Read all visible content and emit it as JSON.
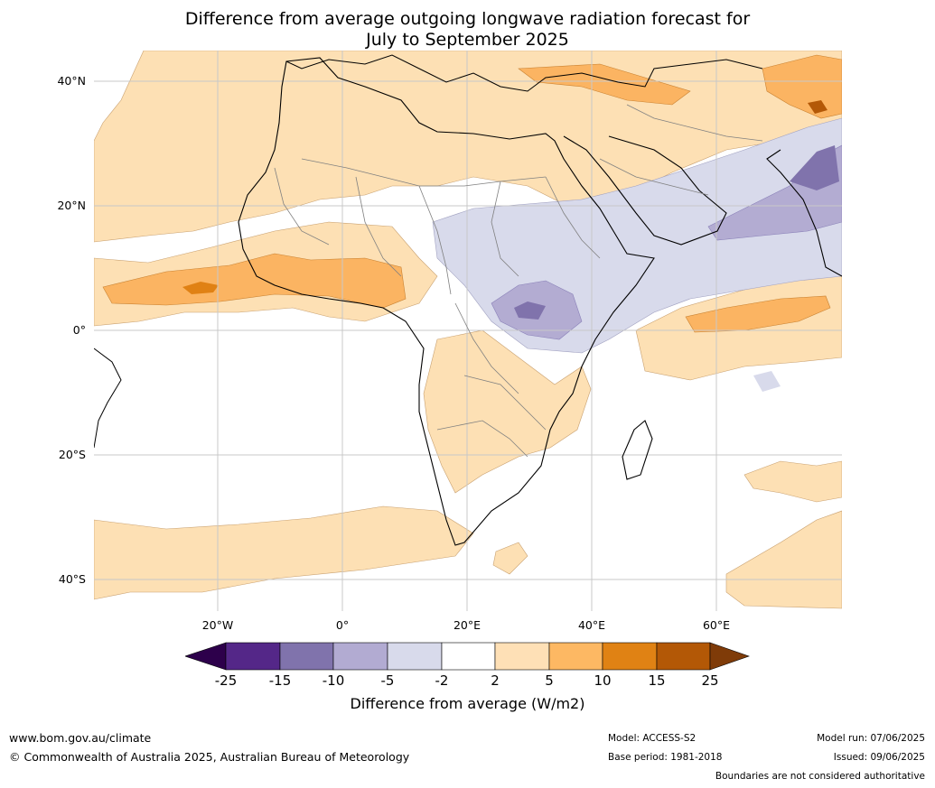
{
  "title": {
    "line1": "Difference from average outgoing longwave radiation forecast for",
    "line2": "July to September 2025"
  },
  "map": {
    "lat_labels": [
      "40°N",
      "20°N",
      "0°",
      "20°S",
      "40°S"
    ],
    "lon_labels": [
      "20°W",
      "0°",
      "20°E",
      "40°E",
      "60°E"
    ],
    "colors": {
      "ocean": "#ffffff",
      "neutral": "#ffffff",
      "pos_2_5": "#fde0b4",
      "pos_5_10": "#fbb462",
      "pos_10_15": "#e08114",
      "pos_15_25": "#b35807",
      "neg_2_5": "#d8daeb",
      "neg_5_10": "#b3acd2",
      "neg_10_15": "#8073ac",
      "coast": "#000000",
      "border": "#808080",
      "grid": "#c8c8c8"
    }
  },
  "colorbar": {
    "title": "Difference from average (W/m2)",
    "ticks": [
      "-25",
      "-15",
      "-10",
      "-5",
      "-2",
      "2",
      "5",
      "10",
      "15",
      "25"
    ],
    "colors": [
      "#2d004b",
      "#542788",
      "#8073ac",
      "#b2abd2",
      "#d8daeb",
      "#ffffff",
      "#fee0b6",
      "#fdb863",
      "#e08214",
      "#b35806",
      "#7f3b08"
    ]
  },
  "footer": {
    "website": "www.bom.gov.au/climate",
    "copyright": "© Commonwealth of Australia 2025, Australian Bureau of Meteorology",
    "model": "Model: ACCESS-S2",
    "base_period": "Base period: 1981-2018",
    "model_run": "Model run: 07/06/2025",
    "issued": "Issued: 09/06/2025",
    "disclaimer": "Boundaries are not considered authoritative"
  }
}
